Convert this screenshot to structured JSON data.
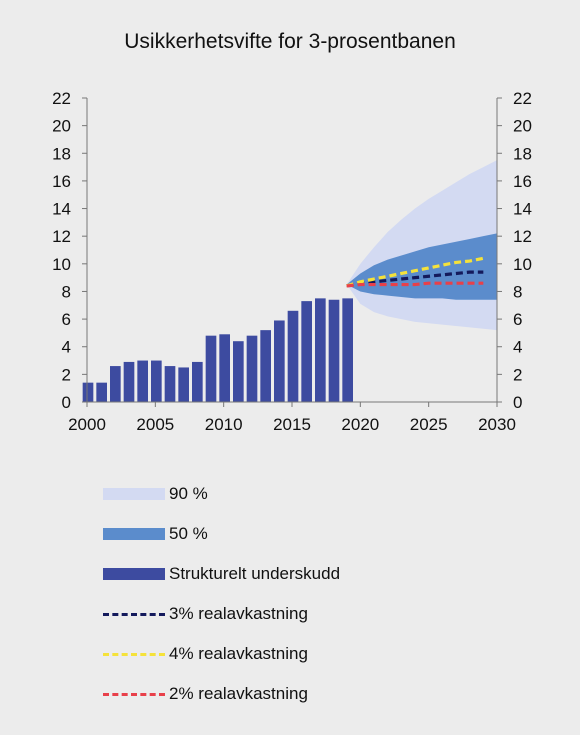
{
  "chart_data": {
    "type": "bar",
    "title": "Usikkerhetsvifte for 3-prosentbanen",
    "xlim": [
      2000,
      2030
    ],
    "ylim": [
      0,
      22
    ],
    "x_ticks": [
      2000,
      2005,
      2010,
      2015,
      2020,
      2025,
      2030
    ],
    "y_ticks": [
      0,
      2,
      4,
      6,
      8,
      10,
      12,
      14,
      16,
      18,
      20,
      22
    ],
    "legend_position": "bottom",
    "colors": {
      "band90": "#d3daf2",
      "band50": "#5b8ccc",
      "bars": "#3d4ba0",
      "line3": "#141a5c",
      "line4": "#f5e23a",
      "line2": "#e8404a"
    },
    "bars": {
      "name": "Strukturelt underskudd",
      "x": [
        2000,
        2001,
        2002,
        2003,
        2004,
        2005,
        2006,
        2007,
        2008,
        2009,
        2010,
        2011,
        2012,
        2013,
        2014,
        2015,
        2016,
        2017,
        2018,
        2019
      ],
      "values": [
        1.4,
        1.4,
        2.6,
        2.9,
        3.0,
        3.0,
        2.6,
        2.5,
        2.9,
        4.8,
        4.9,
        4.4,
        4.8,
        5.2,
        5.9,
        6.6,
        7.3,
        7.5,
        7.4,
        7.5
      ]
    },
    "fan_x": [
      2019,
      2020,
      2021,
      2022,
      2023,
      2024,
      2025,
      2026,
      2027,
      2028,
      2029,
      2030
    ],
    "band90": {
      "name": "90 %",
      "upper": [
        8.5,
        10.0,
        11.2,
        12.3,
        13.2,
        14.0,
        14.7,
        15.3,
        15.9,
        16.5,
        17.0,
        17.5
      ],
      "lower": [
        8.5,
        7.1,
        6.5,
        6.2,
        6.0,
        5.8,
        5.7,
        5.6,
        5.5,
        5.4,
        5.3,
        5.2
      ]
    },
    "band50": {
      "name": "50 %",
      "upper": [
        8.5,
        9.3,
        9.9,
        10.3,
        10.6,
        10.9,
        11.2,
        11.4,
        11.6,
        11.8,
        12.0,
        12.2
      ],
      "lower": [
        8.5,
        8.0,
        7.8,
        7.7,
        7.6,
        7.5,
        7.5,
        7.5,
        7.4,
        7.4,
        7.4,
        7.4
      ]
    },
    "series": [
      {
        "name": "3% realavkastning",
        "x": [
          2019,
          2020,
          2021,
          2022,
          2023,
          2024,
          2025,
          2026,
          2027,
          2028,
          2029
        ],
        "values": [
          8.4,
          8.6,
          8.7,
          8.8,
          8.9,
          9.0,
          9.1,
          9.2,
          9.3,
          9.4,
          9.4
        ]
      },
      {
        "name": "4% realavkastning",
        "x": [
          2019,
          2020,
          2021,
          2022,
          2023,
          2024,
          2025,
          2026,
          2027,
          2028,
          2029
        ],
        "values": [
          8.4,
          8.7,
          8.9,
          9.1,
          9.3,
          9.5,
          9.7,
          9.9,
          10.1,
          10.2,
          10.4
        ]
      },
      {
        "name": "2% realavkastning",
        "x": [
          2019,
          2020,
          2021,
          2022,
          2023,
          2024,
          2025,
          2026,
          2027,
          2028,
          2029
        ],
        "values": [
          8.4,
          8.5,
          8.5,
          8.5,
          8.5,
          8.5,
          8.6,
          8.6,
          8.6,
          8.6,
          8.6
        ]
      }
    ]
  }
}
